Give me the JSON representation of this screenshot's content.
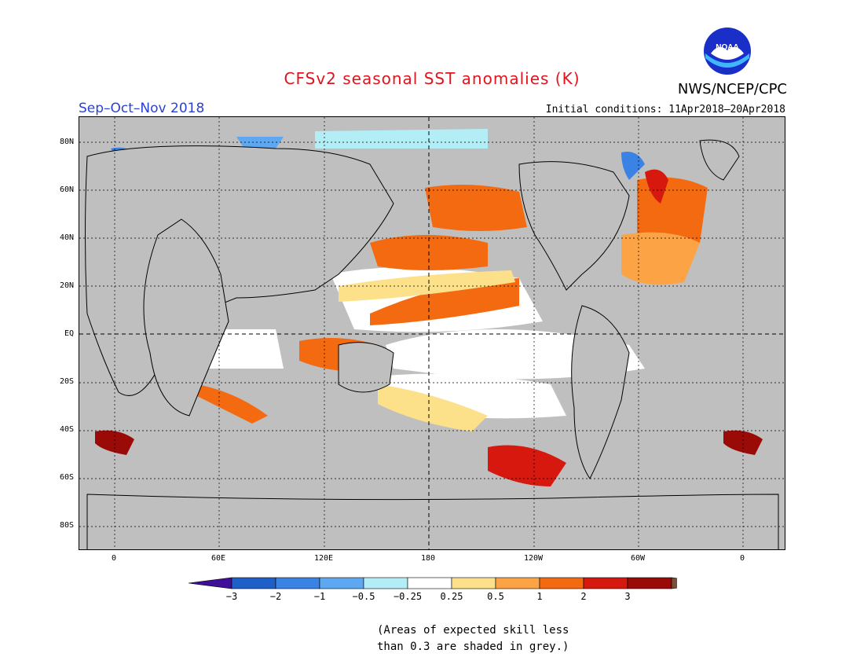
{
  "header": {
    "title": "CFSv2 seasonal SST anomalies (K)",
    "season": "Sep–Oct–Nov 2018",
    "initial_conditions": "Initial conditions: 11Apr2018–20Apr2018",
    "org": "NWS/NCEP/CPC",
    "logo_text": "NOAA"
  },
  "colors": {
    "title": "#e0141e",
    "season": "#2a3fd8",
    "land_grey": "#bfbfbf",
    "skill_grey": "#bfbfbf"
  },
  "map": {
    "lat_labels": [
      "80N",
      "60N",
      "40N",
      "20N",
      "EQ",
      "20S",
      "40S",
      "60S",
      "80S"
    ],
    "lon_labels": [
      "0",
      "60E",
      "120E",
      "180",
      "120W",
      "60W",
      "0"
    ]
  },
  "colorbar": {
    "labels": [
      "−3",
      "−2",
      "−1",
      "−0.5",
      "−0.25",
      "0.25",
      "0.5",
      "1",
      "2",
      "3"
    ],
    "colors": [
      "#3f0f9a",
      "#1f5fc8",
      "#3a82e3",
      "#5da8f0",
      "#b3eef6",
      "#ffffff",
      "#fde08a",
      "#fca445",
      "#f46a10",
      "#d6180f",
      "#9a0b07",
      "#7a4f3a"
    ]
  },
  "footnote": {
    "line1": "(Areas of expected skill less",
    "line2": "than 0.3 are shaded in grey.)"
  }
}
